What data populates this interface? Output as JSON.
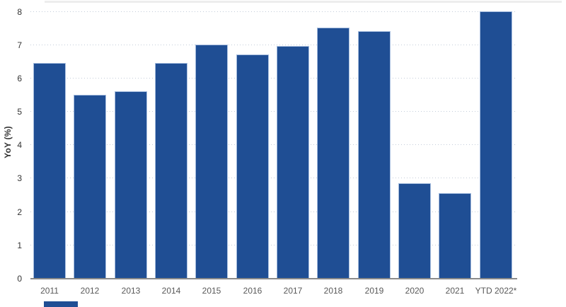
{
  "chart_data": {
    "type": "bar",
    "categories": [
      "2011",
      "2012",
      "2013",
      "2014",
      "2015",
      "2016",
      "2017",
      "2018",
      "2019",
      "2020",
      "2021",
      "YTD 2022*"
    ],
    "values": [
      6.45,
      5.5,
      5.6,
      6.45,
      7.0,
      6.7,
      6.95,
      7.5,
      7.4,
      2.85,
      2.55,
      8.0
    ],
    "title": "",
    "xlabel": "",
    "ylabel": "YoY (%)",
    "ylim": [
      0,
      8
    ],
    "yticks": [
      0,
      1,
      2,
      3,
      4,
      5,
      6,
      7,
      8
    ],
    "grid": "horizontal-dotted",
    "legend": "none",
    "colors": {
      "bar_fill": "#1f4e94",
      "bar_stroke": "#a7bedf",
      "axis_line": "#8a8a8a",
      "gridline": "#c3ccd9",
      "y_tick_text": "#333333",
      "x_tick_text": "#595959",
      "top_border": "#ededed"
    }
  }
}
